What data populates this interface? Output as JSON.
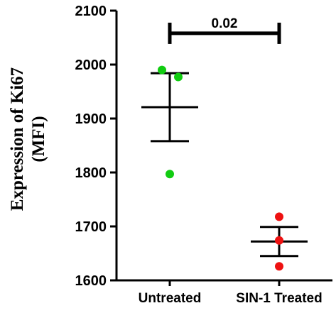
{
  "chart_data": {
    "type": "scatter",
    "ylabel_line1": "Expression of Ki67",
    "ylabel_line2": "(MFI)",
    "ylim": [
      1600,
      2100
    ],
    "yticks": [
      "1600",
      "1700",
      "1800",
      "1900",
      "2000",
      "2100"
    ],
    "categories": [
      "Untreated",
      "SIN-1 Treated"
    ],
    "groups": [
      {
        "category": "Untreated",
        "color": "#11cc11",
        "points": [
          1990,
          1977,
          1797
        ],
        "mean": 1921,
        "sem_low": 1858,
        "sem_high": 1984
      },
      {
        "category": "SIN-1 Treated",
        "color": "#ee1111",
        "points": [
          1718,
          1674,
          1626
        ],
        "mean": 1672,
        "sem_low": 1645,
        "sem_high": 1699
      }
    ],
    "annotation": {
      "text": "0.02",
      "y": 2058
    }
  }
}
